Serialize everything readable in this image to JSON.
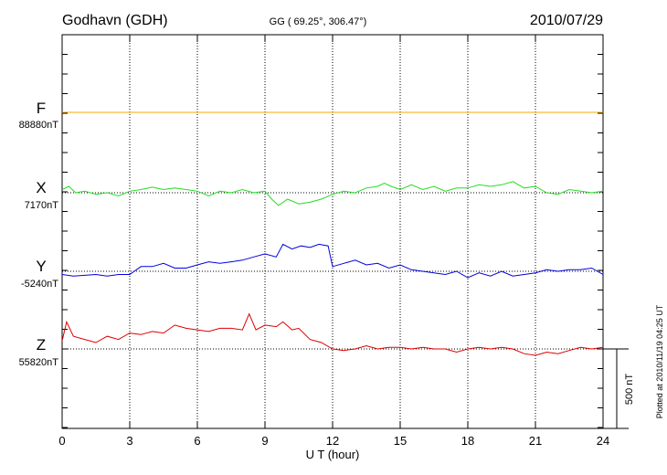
{
  "chart_data": {
    "type": "line",
    "station": "Godhavn (GDH)",
    "coords": "GG ( 69.25°, 306.47°)",
    "date": "2010/07/29",
    "xlabel": "U T (hour)",
    "xlim": [
      0,
      24
    ],
    "xticks": [
      0,
      3,
      6,
      9,
      12,
      15,
      18,
      21,
      24
    ],
    "xtick_labels": [
      "0",
      "3",
      "6",
      "9",
      "12",
      "15",
      "18",
      "21",
      "24"
    ],
    "scale_label": "500 nT",
    "scale_value_nT": 500,
    "plotted_note": "Plotted at 2010/11/19 04:25 UT",
    "grid": true,
    "series": [
      {
        "name": "F",
        "baseline_label": "88880nT",
        "color": "#f5a800",
        "x": [
          0,
          24
        ],
        "values": [
          0,
          0
        ]
      },
      {
        "name": "X",
        "baseline_label": "7170nT",
        "color": "#22dd22",
        "x": [
          0,
          0.3,
          0.6,
          1,
          1.5,
          2,
          2.5,
          3,
          3.5,
          4,
          4.5,
          5,
          5.5,
          6,
          6.5,
          7,
          7.5,
          8,
          8.5,
          9,
          9.3,
          9.6,
          10,
          10.5,
          11,
          11.5,
          12,
          12.5,
          13,
          13.5,
          14,
          14.3,
          14.6,
          15,
          15.5,
          16,
          16.5,
          17,
          17.5,
          18,
          18.5,
          19,
          19.5,
          20,
          20.5,
          21,
          21.5,
          22,
          22.5,
          23,
          23.5,
          24
        ],
        "values": [
          20,
          40,
          0,
          10,
          -10,
          0,
          -20,
          10,
          20,
          35,
          20,
          30,
          20,
          10,
          -20,
          10,
          0,
          20,
          0,
          10,
          -40,
          -80,
          -40,
          -70,
          -60,
          -40,
          -10,
          10,
          0,
          30,
          40,
          60,
          40,
          20,
          50,
          20,
          40,
          10,
          30,
          30,
          50,
          40,
          50,
          70,
          30,
          40,
          0,
          -10,
          20,
          10,
          0,
          10
        ]
      },
      {
        "name": "Y",
        "baseline_label": "-5240nT",
        "color": "#0000dd",
        "x": [
          0,
          0.5,
          1,
          1.5,
          2,
          2.5,
          3,
          3.5,
          4,
          4.5,
          5,
          5.5,
          6,
          6.5,
          7,
          7.5,
          8,
          8.5,
          9,
          9.5,
          9.8,
          10.2,
          10.6,
          11,
          11.4,
          11.8,
          12,
          12.5,
          13,
          13.5,
          14,
          14.5,
          15,
          15.5,
          16,
          16.5,
          17,
          17.5,
          18,
          18.5,
          19,
          19.5,
          20,
          20.5,
          21,
          21.5,
          22,
          22.5,
          23,
          23.5,
          24
        ],
        "values": [
          -20,
          -30,
          -25,
          -20,
          -30,
          -20,
          -20,
          30,
          30,
          50,
          20,
          20,
          40,
          60,
          50,
          60,
          70,
          90,
          110,
          90,
          170,
          140,
          160,
          150,
          170,
          160,
          30,
          50,
          70,
          40,
          50,
          20,
          40,
          10,
          0,
          -10,
          -20,
          0,
          -40,
          -10,
          -30,
          0,
          -30,
          -20,
          -10,
          10,
          0,
          10,
          10,
          20,
          -20
        ]
      },
      {
        "name": "Z",
        "baseline_label": "55820nT",
        "color": "#dd0000",
        "x": [
          0,
          0.2,
          0.5,
          1,
          1.5,
          2,
          2.5,
          3,
          3.5,
          4,
          4.5,
          5,
          5.5,
          6,
          6.5,
          7,
          7.5,
          8,
          8.3,
          8.6,
          9,
          9.5,
          9.8,
          10.2,
          10.5,
          11,
          11.5,
          12,
          12.5,
          13,
          13.5,
          14,
          14.5,
          15,
          15.5,
          16,
          16.5,
          17,
          17.5,
          18,
          18.5,
          19,
          19.5,
          20,
          20.5,
          21,
          21.5,
          22,
          22.5,
          23,
          23.5,
          24
        ],
        "values": [
          50,
          170,
          80,
          60,
          40,
          80,
          60,
          100,
          90,
          110,
          100,
          150,
          130,
          120,
          110,
          130,
          130,
          120,
          220,
          120,
          150,
          140,
          170,
          120,
          130,
          60,
          40,
          0,
          -10,
          0,
          20,
          0,
          10,
          10,
          0,
          10,
          0,
          0,
          -20,
          0,
          10,
          0,
          10,
          0,
          -30,
          -40,
          -20,
          -30,
          -10,
          10,
          0,
          10
        ]
      }
    ]
  }
}
